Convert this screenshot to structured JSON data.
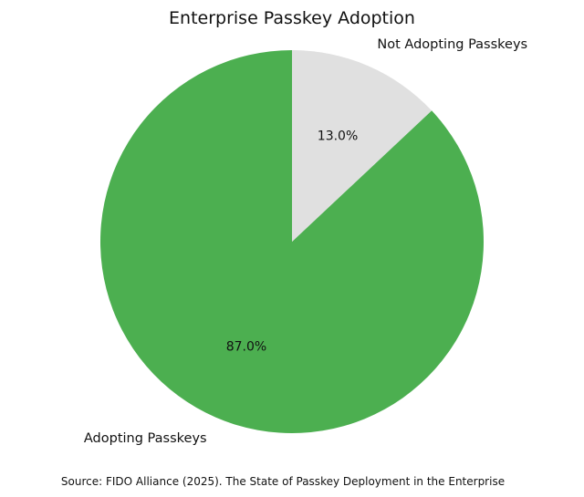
{
  "chart_data": {
    "type": "pie",
    "title": "Enterprise Passkey Adoption",
    "categories": [
      "Adopting Passkeys",
      "Not Adopting Passkeys"
    ],
    "values": [
      87.0,
      13.0
    ],
    "colors": [
      "#4caf50",
      "#e0e0e0"
    ],
    "value_labels": [
      "87.0%",
      "13.0%"
    ],
    "start_angle_deg": 90,
    "direction": "counterclockwise",
    "source": "Source: FIDO Alliance (2025). The State of Passkey Deployment in the Enterprise"
  }
}
